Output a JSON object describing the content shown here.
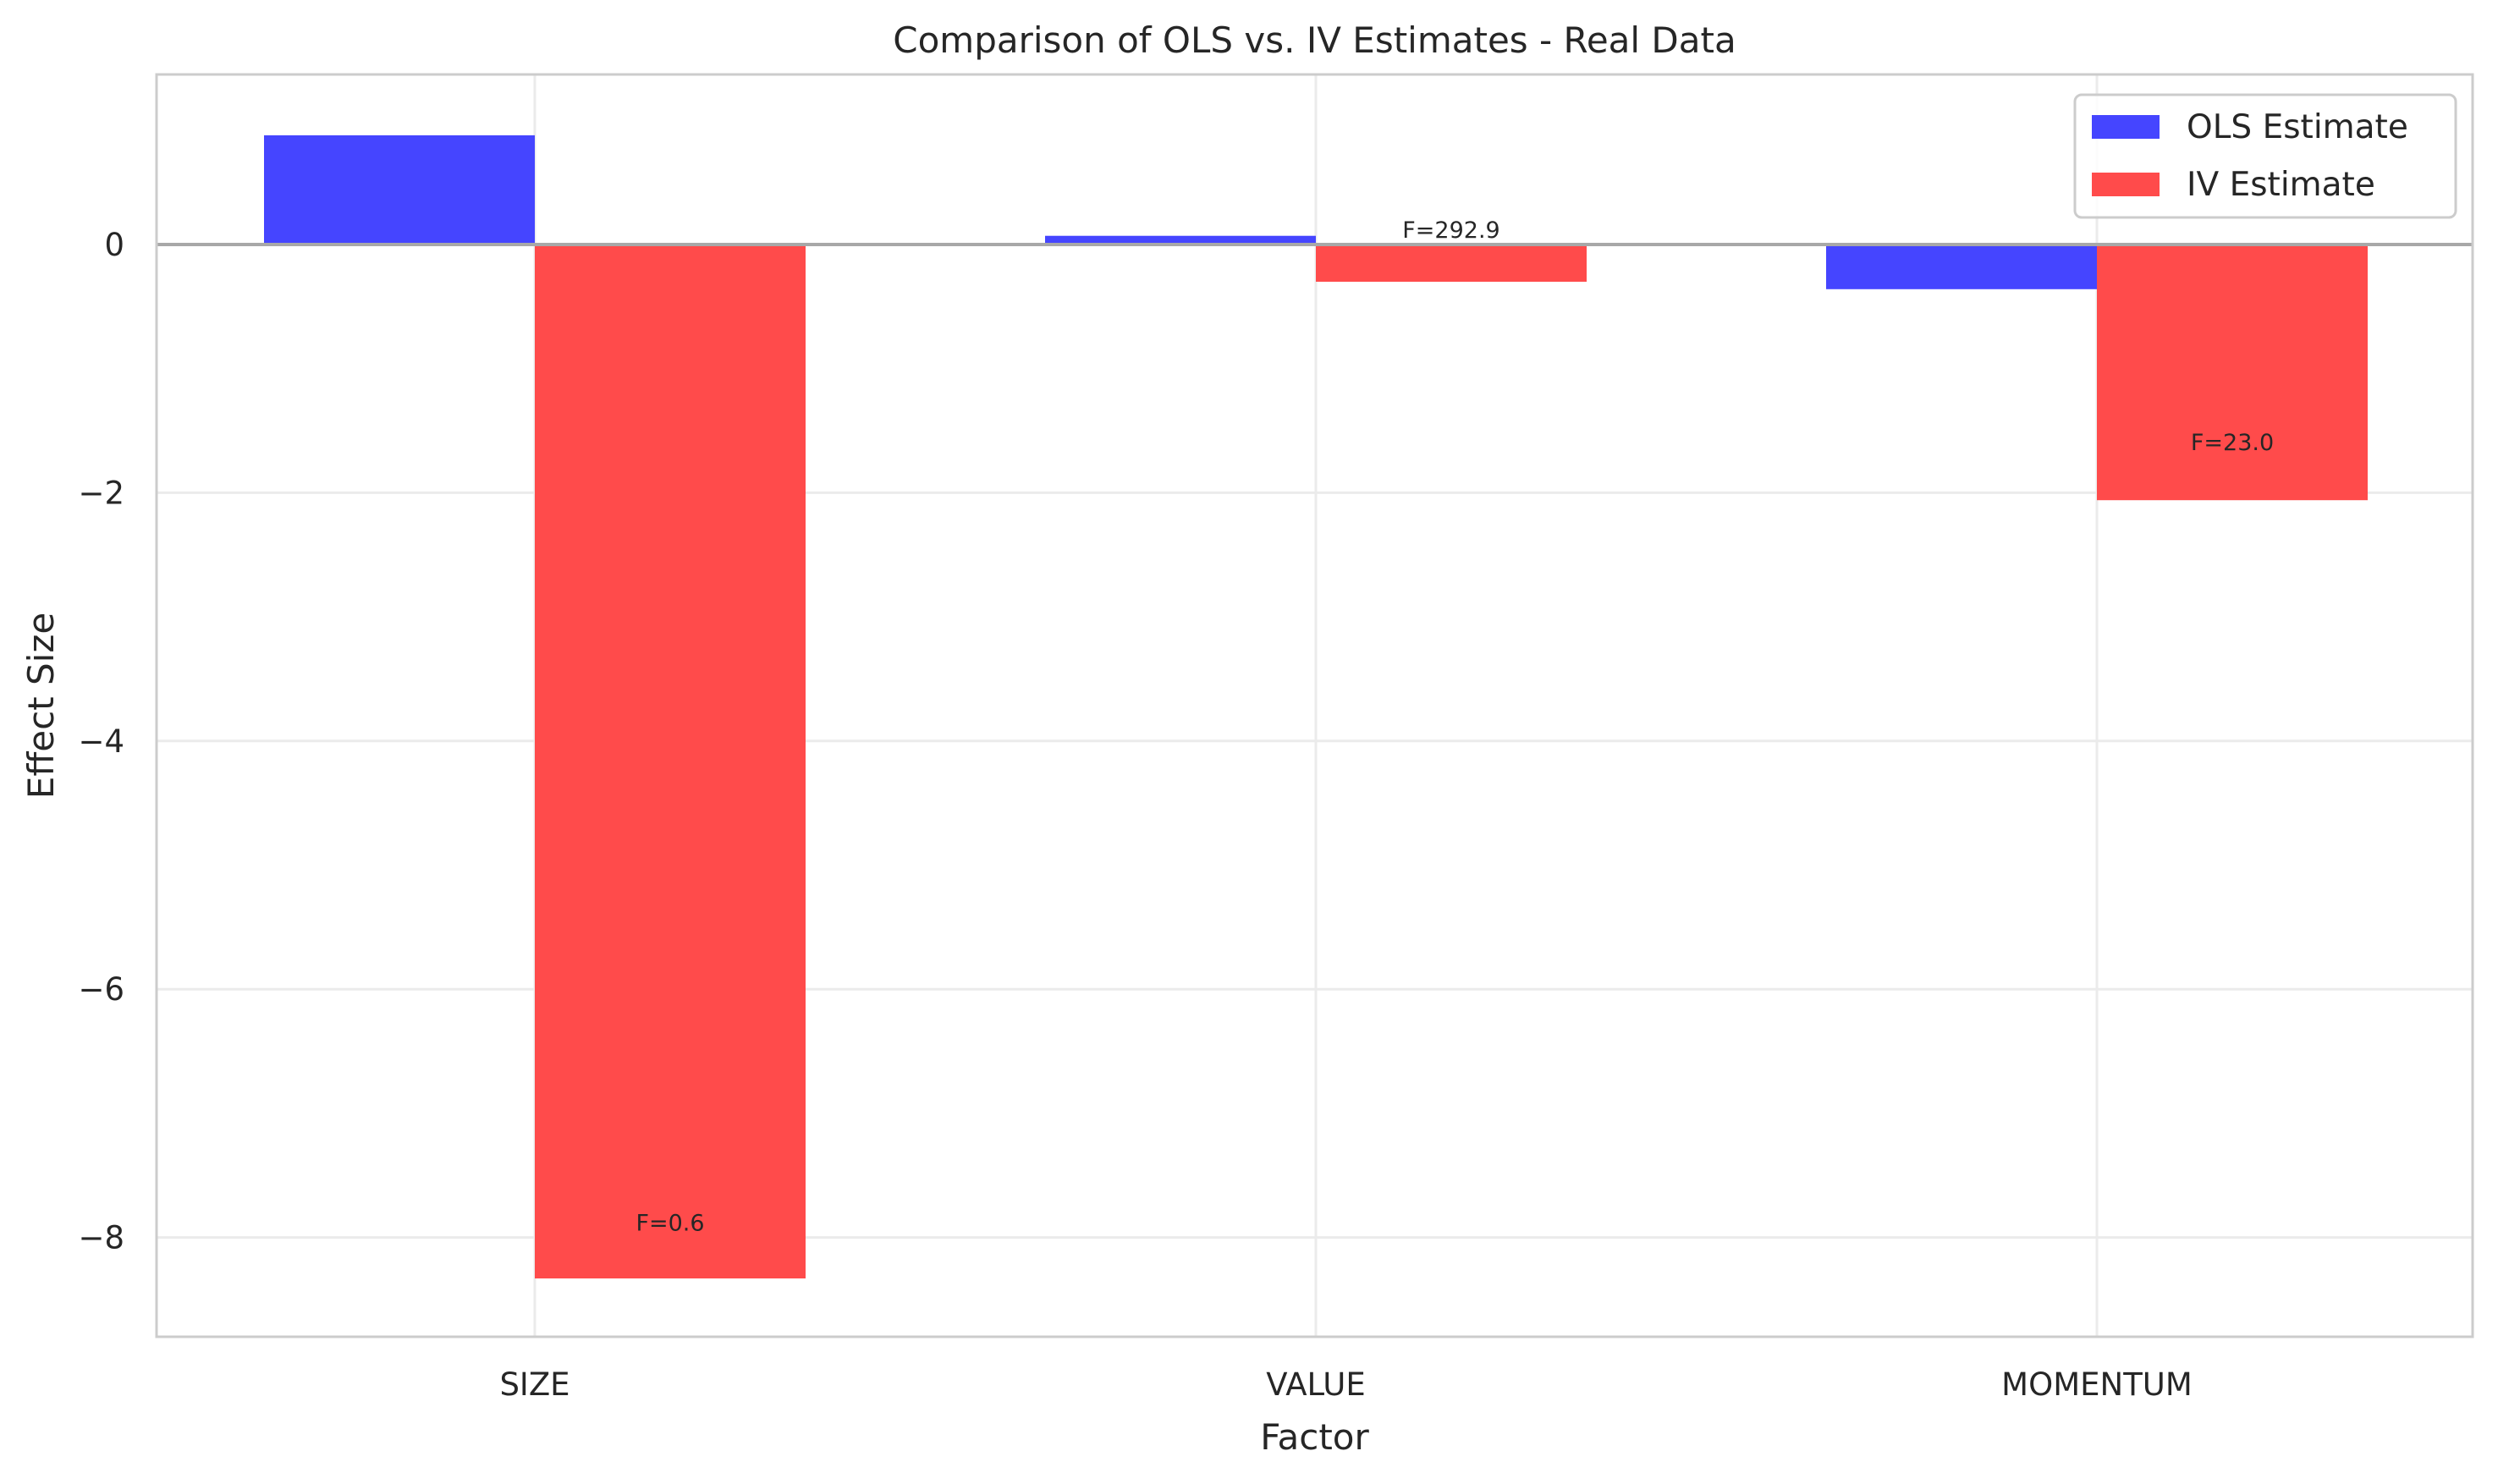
{
  "chart_data": {
    "type": "bar",
    "title": "Comparison of OLS vs. IV Estimates - Real Data",
    "xlabel": "Factor",
    "ylabel": "Effect Size",
    "categories": [
      "SIZE",
      "VALUE",
      "MOMENTUM"
    ],
    "series": [
      {
        "name": "OLS Estimate",
        "values": [
          0.88,
          0.07,
          -0.36
        ],
        "color": "#4545ff"
      },
      {
        "name": "IV Estimate",
        "values": [
          -8.33,
          -0.3,
          -2.06
        ],
        "color": "#ff4b4b"
      }
    ],
    "bar_labels": [
      {
        "category": "SIZE",
        "text": "F=0.6",
        "y": -8.0
      },
      {
        "category": "VALUE",
        "text": "F=292.9",
        "y": 0.0
      },
      {
        "category": "MOMENTUM",
        "text": "F=23.0",
        "y": -1.71
      }
    ],
    "ylim": [
      -8.8,
      1.37
    ],
    "yticks": [
      0,
      -2,
      -4,
      -6,
      -8
    ],
    "ytick_labels": [
      "0",
      "−2",
      "−4",
      "−6",
      "−8"
    ],
    "grid": true,
    "legend_position": "top-right"
  }
}
